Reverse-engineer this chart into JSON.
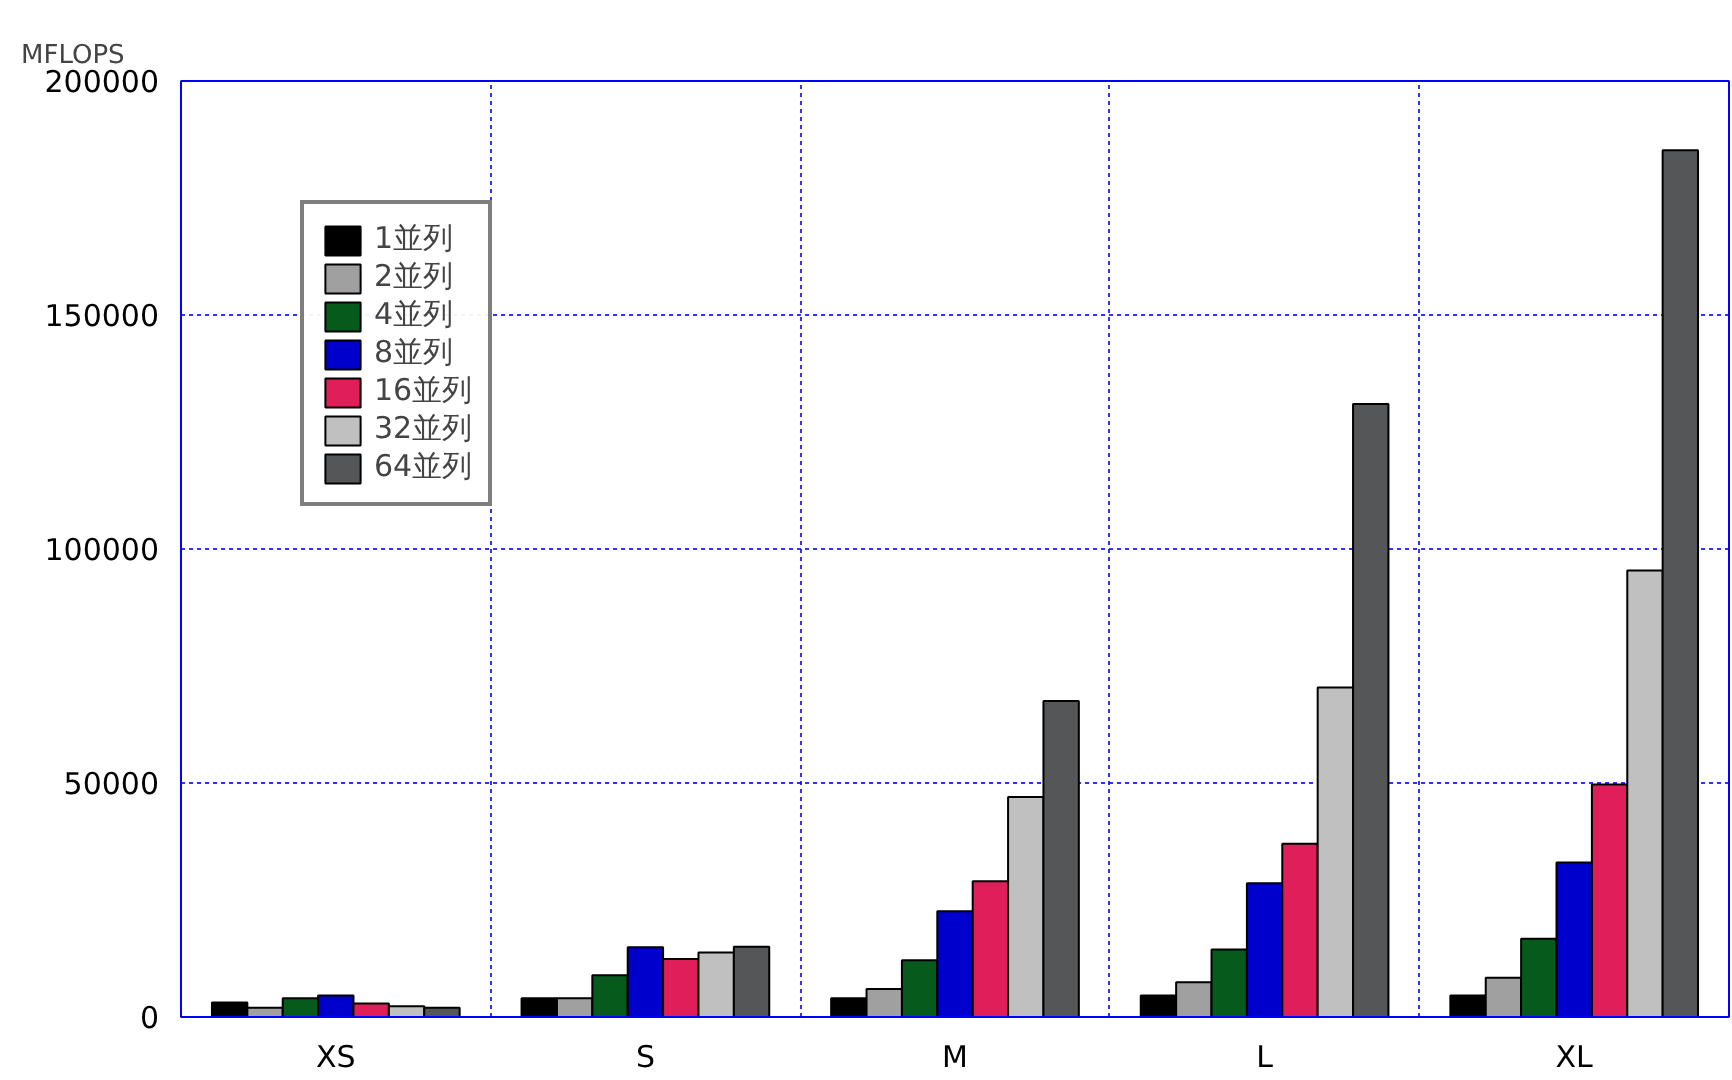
{
  "chart_data": {
    "type": "bar",
    "ylabel": "MFLOPS",
    "categories": [
      "XS",
      "S",
      "M",
      "L",
      "XL"
    ],
    "series": [
      {
        "name": "1並列",
        "color": "#000000",
        "values": [
          3100,
          4000,
          4000,
          4600,
          4600
        ]
      },
      {
        "name": "2並列",
        "color": "#a0a0a0",
        "values": [
          2000,
          4000,
          6000,
          7400,
          8400
        ]
      },
      {
        "name": "4並列",
        "color": "#055a1c",
        "values": [
          4000,
          8900,
          12100,
          14400,
          16700
        ]
      },
      {
        "name": "8並列",
        "color": "#0000cc",
        "values": [
          4600,
          14900,
          22600,
          28600,
          33000
        ]
      },
      {
        "name": "16並列",
        "color": "#e01e5a",
        "values": [
          2900,
          12400,
          29000,
          37000,
          49700
        ]
      },
      {
        "name": "32並列",
        "color": "#c0c0c0",
        "values": [
          2300,
          13800,
          47000,
          70400,
          95400
        ]
      },
      {
        "name": "64並列",
        "color": "#555658",
        "values": [
          2000,
          15000,
          67500,
          131000,
          185200
        ]
      }
    ],
    "ylim": [
      0,
      200000
    ],
    "yticks": [
      0,
      50000,
      100000,
      150000,
      200000
    ],
    "grid": true,
    "legend": "top left"
  }
}
